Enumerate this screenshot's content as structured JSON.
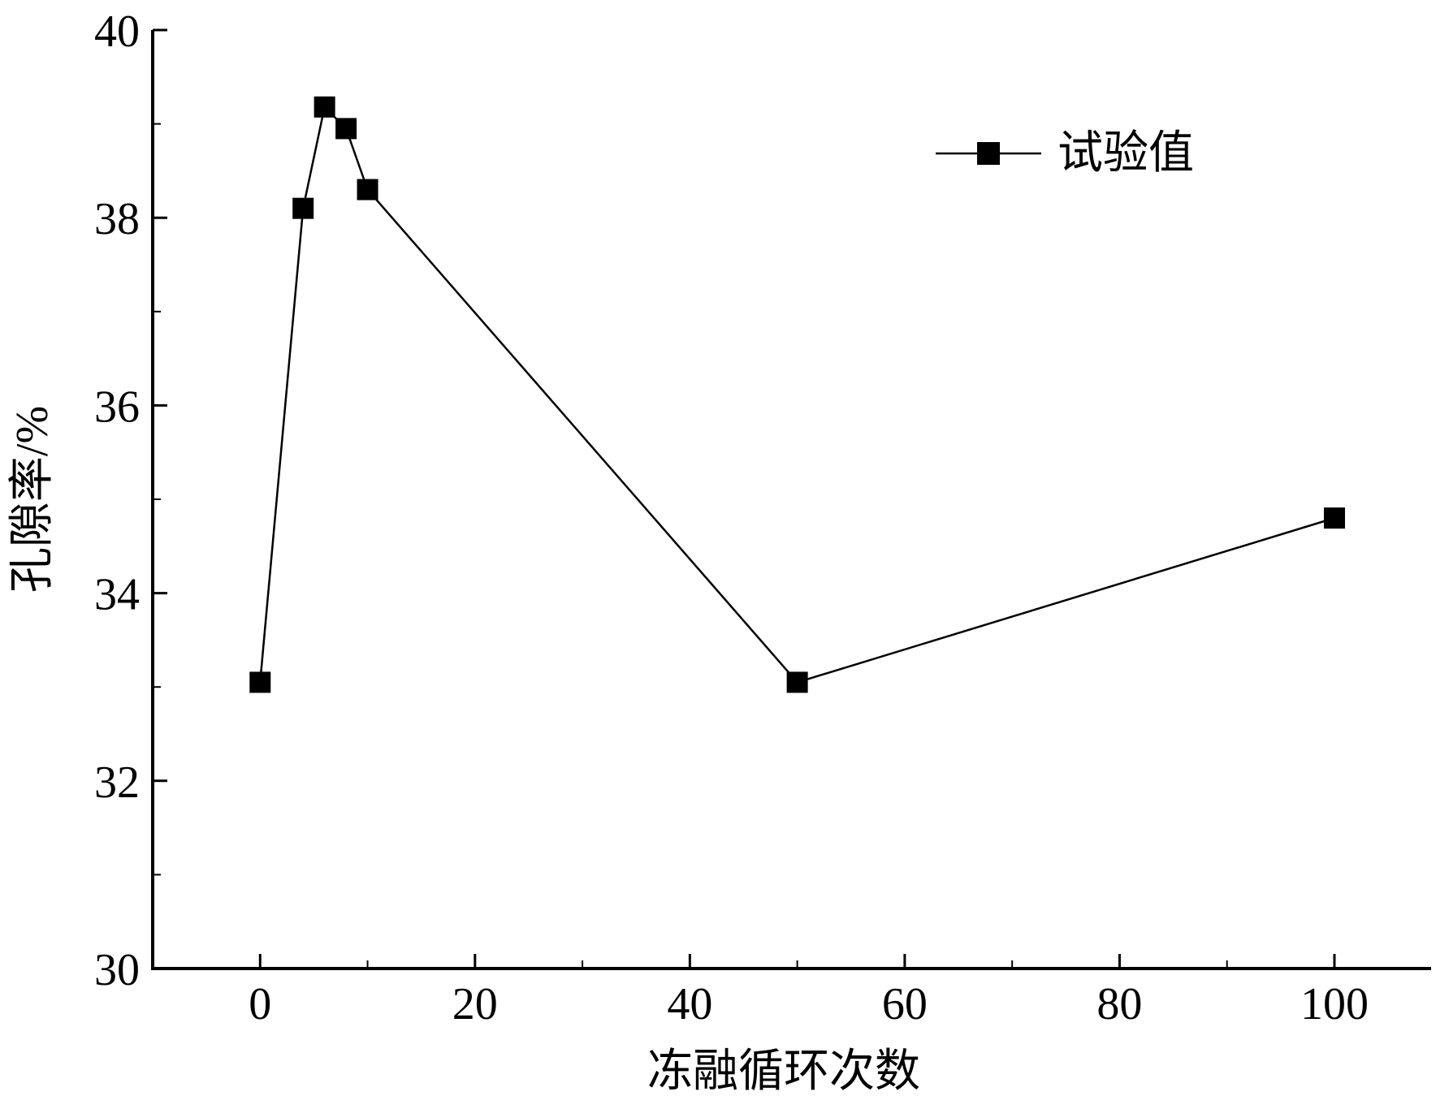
{
  "chart_data": {
    "type": "line",
    "xlabel": "冻融循环次数",
    "ylabel": "孔隙率/%",
    "xlim": [
      -10,
      109
    ],
    "ylim": [
      30,
      40
    ],
    "x_ticks": [
      0,
      20,
      40,
      60,
      80,
      100
    ],
    "y_ticks": [
      30,
      32,
      34,
      36,
      38,
      40
    ],
    "grid": false,
    "legend_position": "top-right",
    "series": [
      {
        "name": "试验值",
        "marker": "square",
        "color": "#000000",
        "x": [
          0,
          4,
          6,
          8,
          10,
          50,
          100
        ],
        "y": [
          33.05,
          38.1,
          39.18,
          38.95,
          38.3,
          33.05,
          34.8
        ]
      }
    ]
  }
}
